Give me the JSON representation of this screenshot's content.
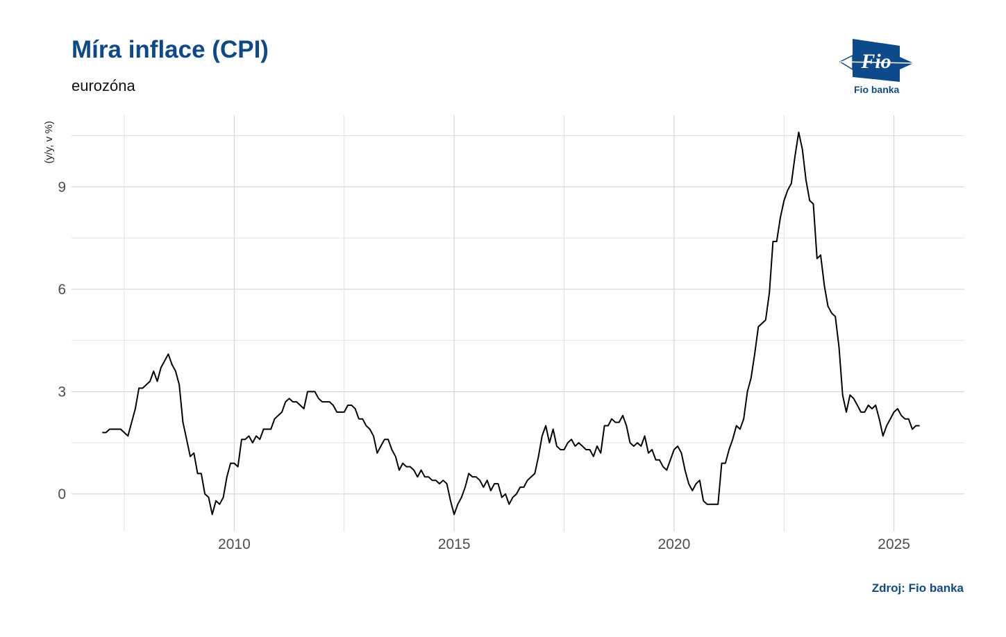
{
  "header": {
    "title": "Míra inflace (CPI)",
    "subtitle": "eurozóna"
  },
  "footer": {
    "source": "Zdroj: Fio banka"
  },
  "logo": {
    "mark": "Fio",
    "name": "Fio banka",
    "color": "#0c4a8c"
  },
  "chart_data": {
    "type": "line",
    "title": "Míra inflace (CPI)",
    "subtitle": "eurozóna",
    "xlabel": "",
    "ylabel": "(y/y, v %)",
    "x_ticks": [
      2010,
      2015,
      2020,
      2025
    ],
    "x_tick_labels": [
      "2010",
      "2015",
      "2020",
      "2025"
    ],
    "y_ticks": [
      0,
      3,
      6,
      9
    ],
    "y_tick_labels": [
      "0",
      "3",
      "6",
      "9"
    ],
    "xlim": [
      2006.3,
      2026.6
    ],
    "ylim": [
      -1.1,
      11.1
    ],
    "grid": true,
    "legend": "none",
    "line_color": "#000000",
    "series": [
      {
        "x": [
          2007.0,
          2007.083,
          2007.167,
          2007.25,
          2007.333,
          2007.417,
          2007.5,
          2007.583,
          2007.667,
          2007.75,
          2007.833,
          2007.917,
          2008.0,
          2008.083,
          2008.167,
          2008.25,
          2008.333,
          2008.417,
          2008.5,
          2008.583,
          2008.667,
          2008.75,
          2008.833,
          2008.917,
          2009.0,
          2009.083,
          2009.167,
          2009.25,
          2009.333,
          2009.417,
          2009.5,
          2009.583,
          2009.667,
          2009.75,
          2009.833,
          2009.917,
          2010.0,
          2010.083,
          2010.167,
          2010.25,
          2010.333,
          2010.417,
          2010.5,
          2010.583,
          2010.667,
          2010.75,
          2010.833,
          2010.917,
          2011.0,
          2011.083,
          2011.167,
          2011.25,
          2011.333,
          2011.417,
          2011.5,
          2011.583,
          2011.667,
          2011.75,
          2011.833,
          2011.917,
          2012.0,
          2012.083,
          2012.167,
          2012.25,
          2012.333,
          2012.417,
          2012.5,
          2012.583,
          2012.667,
          2012.75,
          2012.833,
          2012.917,
          2013.0,
          2013.083,
          2013.167,
          2013.25,
          2013.333,
          2013.417,
          2013.5,
          2013.583,
          2013.667,
          2013.75,
          2013.833,
          2013.917,
          2014.0,
          2014.083,
          2014.167,
          2014.25,
          2014.333,
          2014.417,
          2014.5,
          2014.583,
          2014.667,
          2014.75,
          2014.833,
          2014.917,
          2015.0,
          2015.083,
          2015.167,
          2015.25,
          2015.333,
          2015.417,
          2015.5,
          2015.583,
          2015.667,
          2015.75,
          2015.833,
          2015.917,
          2016.0,
          2016.083,
          2016.167,
          2016.25,
          2016.333,
          2016.417,
          2016.5,
          2016.583,
          2016.667,
          2016.75,
          2016.833,
          2016.917,
          2017.0,
          2017.083,
          2017.167,
          2017.25,
          2017.333,
          2017.417,
          2017.5,
          2017.583,
          2017.667,
          2017.75,
          2017.833,
          2017.917,
          2018.0,
          2018.083,
          2018.167,
          2018.25,
          2018.333,
          2018.417,
          2018.5,
          2018.583,
          2018.667,
          2018.75,
          2018.833,
          2018.917,
          2019.0,
          2019.083,
          2019.167,
          2019.25,
          2019.333,
          2019.417,
          2019.5,
          2019.583,
          2019.667,
          2019.75,
          2019.833,
          2019.917,
          2020.0,
          2020.083,
          2020.167,
          2020.25,
          2020.333,
          2020.417,
          2020.5,
          2020.583,
          2020.667,
          2020.75,
          2020.833,
          2020.917,
          2021.0,
          2021.083,
          2021.167,
          2021.25,
          2021.333,
          2021.417,
          2021.5,
          2021.583,
          2021.667,
          2021.75,
          2021.833,
          2021.917,
          2022.0,
          2022.083,
          2022.167,
          2022.25,
          2022.333,
          2022.417,
          2022.5,
          2022.583,
          2022.667,
          2022.75,
          2022.833,
          2022.917,
          2023.0,
          2023.083,
          2023.167,
          2023.25,
          2023.333,
          2023.417,
          2023.5,
          2023.583,
          2023.667,
          2023.75,
          2023.833,
          2023.917,
          2024.0,
          2024.083,
          2024.167,
          2024.25,
          2024.333,
          2024.417,
          2024.5,
          2024.583,
          2024.667,
          2024.75,
          2024.833,
          2024.917,
          2025.0,
          2025.083,
          2025.167,
          2025.25,
          2025.333,
          2025.417,
          2025.5,
          2025.583
        ],
        "y": [
          1.8,
          1.8,
          1.9,
          1.9,
          1.9,
          1.9,
          1.8,
          1.7,
          2.1,
          2.5,
          3.1,
          3.1,
          3.2,
          3.3,
          3.6,
          3.3,
          3.7,
          3.9,
          4.1,
          3.8,
          3.6,
          3.2,
          2.1,
          1.6,
          1.1,
          1.2,
          0.6,
          0.6,
          0.0,
          -0.1,
          -0.6,
          -0.2,
          -0.3,
          -0.1,
          0.5,
          0.9,
          0.9,
          0.8,
          1.6,
          1.6,
          1.7,
          1.5,
          1.7,
          1.6,
          1.9,
          1.9,
          1.9,
          2.2,
          2.3,
          2.4,
          2.7,
          2.8,
          2.7,
          2.7,
          2.6,
          2.5,
          3.0,
          3.0,
          3.0,
          2.8,
          2.7,
          2.7,
          2.7,
          2.6,
          2.4,
          2.4,
          2.4,
          2.6,
          2.6,
          2.5,
          2.2,
          2.2,
          2.0,
          1.9,
          1.7,
          1.2,
          1.4,
          1.6,
          1.6,
          1.3,
          1.1,
          0.7,
          0.9,
          0.8,
          0.8,
          0.7,
          0.5,
          0.7,
          0.5,
          0.5,
          0.4,
          0.4,
          0.3,
          0.4,
          0.3,
          -0.2,
          -0.6,
          -0.3,
          -0.1,
          0.2,
          0.6,
          0.5,
          0.5,
          0.4,
          0.2,
          0.4,
          0.1,
          0.3,
          0.3,
          -0.1,
          0.0,
          -0.3,
          -0.1,
          0.0,
          0.2,
          0.2,
          0.4,
          0.5,
          0.6,
          1.1,
          1.7,
          2.0,
          1.5,
          1.9,
          1.4,
          1.3,
          1.3,
          1.5,
          1.6,
          1.4,
          1.5,
          1.4,
          1.3,
          1.3,
          1.1,
          1.4,
          1.2,
          2.0,
          2.0,
          2.2,
          2.1,
          2.1,
          2.3,
          2.0,
          1.5,
          1.4,
          1.5,
          1.4,
          1.7,
          1.2,
          1.3,
          1.0,
          1.0,
          0.8,
          0.7,
          1.0,
          1.3,
          1.4,
          1.2,
          0.7,
          0.3,
          0.1,
          0.3,
          0.4,
          -0.2,
          -0.3,
          -0.3,
          -0.3,
          -0.3,
          0.9,
          0.9,
          1.3,
          1.6,
          2.0,
          1.9,
          2.2,
          3.0,
          3.4,
          4.1,
          4.9,
          5.0,
          5.1,
          5.9,
          7.4,
          7.4,
          8.1,
          8.6,
          8.9,
          9.1,
          9.9,
          10.6,
          10.1,
          9.2,
          8.6,
          8.5,
          6.9,
          7.0,
          6.1,
          5.5,
          5.3,
          5.2,
          4.3,
          2.9,
          2.4,
          2.9,
          2.8,
          2.6,
          2.4,
          2.4,
          2.6,
          2.5,
          2.6,
          2.2,
          1.7,
          2.0,
          2.2,
          2.4,
          2.5,
          2.3,
          2.2,
          2.2,
          1.9,
          2.0,
          2.0
        ]
      }
    ]
  }
}
